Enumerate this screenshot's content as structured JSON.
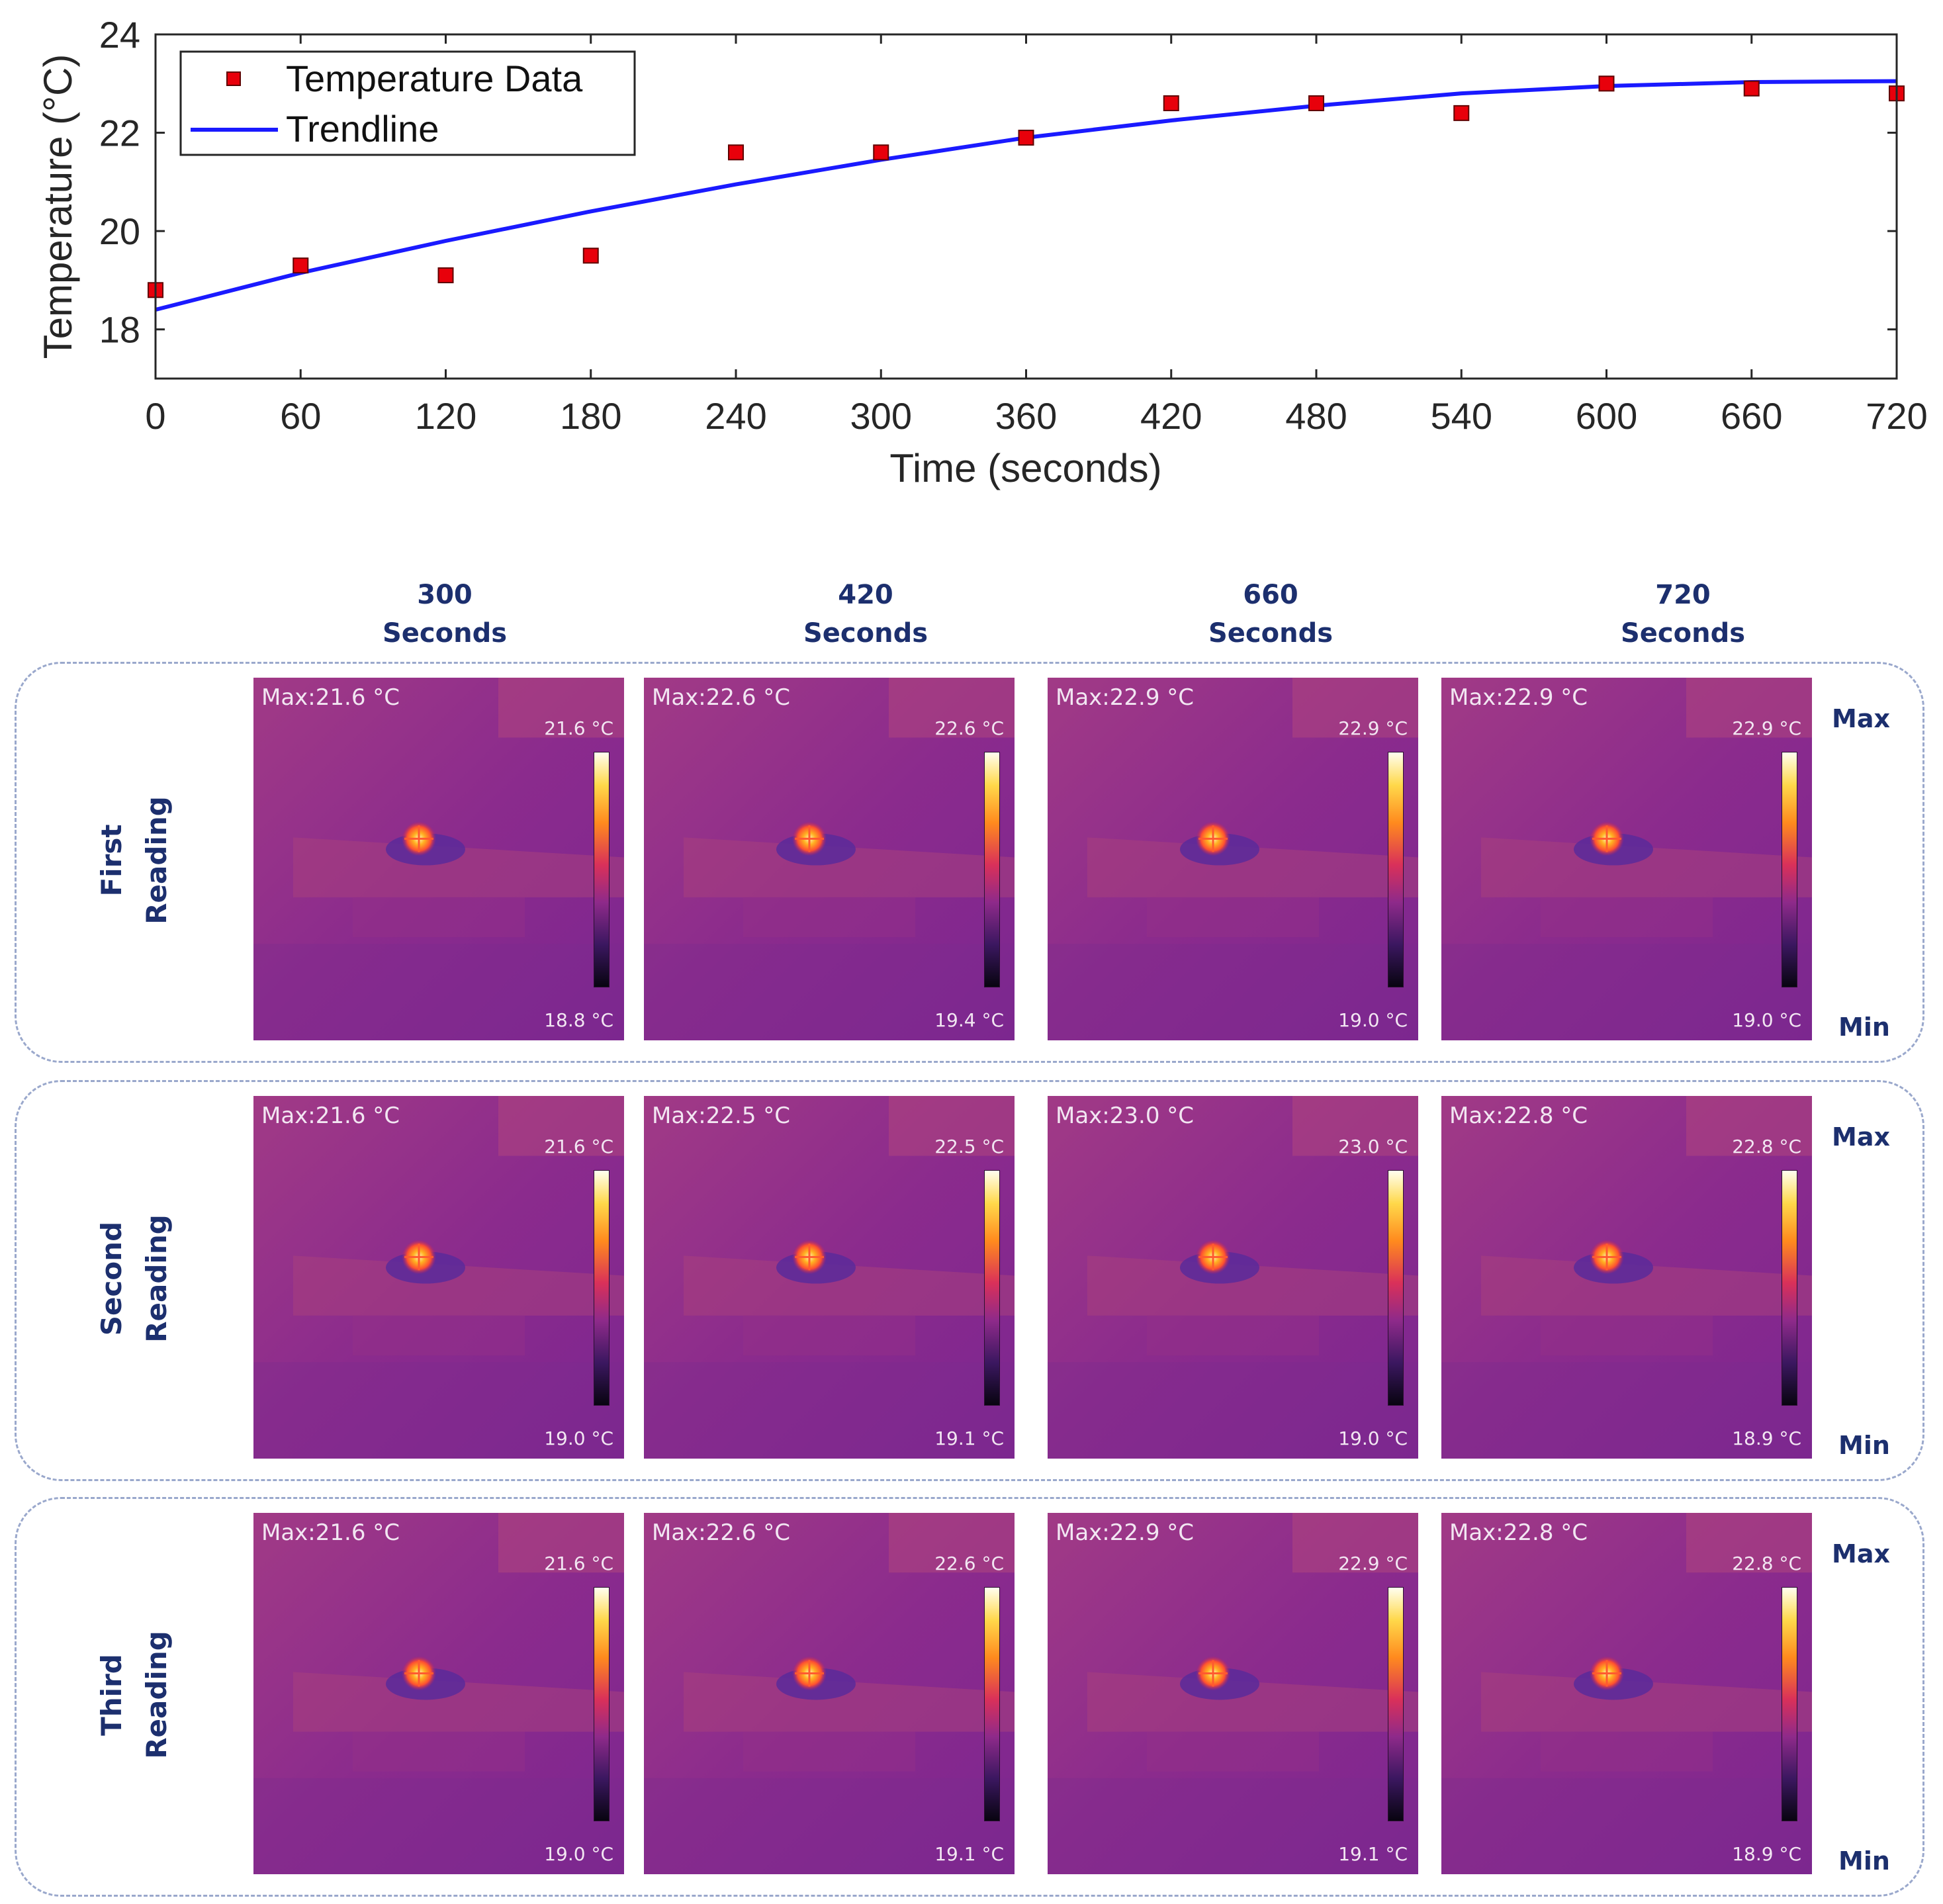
{
  "chart_data": {
    "type": "scatter",
    "title": "",
    "xlabel": "Time (seconds)",
    "ylabel": "Temperature (°C)",
    "xlim": [
      0,
      720
    ],
    "ylim": [
      17,
      24
    ],
    "xticks": [
      "0",
      "60",
      "120",
      "180",
      "240",
      "300",
      "360",
      "420",
      "480",
      "540",
      "600",
      "660",
      "720"
    ],
    "yticks": [
      "18",
      "20",
      "22",
      "24"
    ],
    "legend_position": "top-left",
    "series": [
      {
        "name": "Temperature Data",
        "kind": "markers",
        "color": "#e8000b",
        "x": [
          0,
          60,
          120,
          180,
          240,
          300,
          360,
          420,
          480,
          540,
          600,
          660,
          720
        ],
        "y": [
          18.8,
          19.3,
          19.1,
          19.5,
          21.6,
          21.6,
          21.9,
          22.6,
          22.6,
          22.4,
          23.0,
          22.9,
          22.8
        ]
      },
      {
        "name": "Trendline",
        "kind": "line",
        "color": "#1a1aff",
        "x": [
          0,
          60,
          120,
          180,
          240,
          300,
          360,
          420,
          480,
          540,
          600,
          660,
          720
        ],
        "y": [
          18.4,
          19.15,
          19.8,
          20.4,
          20.95,
          21.45,
          21.9,
          22.25,
          22.55,
          22.8,
          22.95,
          23.03,
          23.05
        ]
      }
    ]
  },
  "thermal_grid": {
    "columns": [
      {
        "line1": "300",
        "line2": "Seconds"
      },
      {
        "line1": "420",
        "line2": "Seconds"
      },
      {
        "line1": "660",
        "line2": "Seconds"
      },
      {
        "line1": "720",
        "line2": "Seconds"
      }
    ],
    "side_max_label": "Max",
    "side_min_label": "Min",
    "rows": [
      {
        "label_line1": "First",
        "label_line2": "Reading",
        "images": [
          {
            "max": "Max:21.6 °C",
            "top": "21.6 °C",
            "bottom": "18.8 °C"
          },
          {
            "max": "Max:22.6 °C",
            "top": "22.6 °C",
            "bottom": "19.4 °C"
          },
          {
            "max": "Max:22.9 °C",
            "top": "22.9 °C",
            "bottom": "19.0 °C"
          },
          {
            "max": "Max:22.9 °C",
            "top": "22.9 °C",
            "bottom": "19.0 °C"
          }
        ]
      },
      {
        "label_line1": "Second",
        "label_line2": "Reading",
        "images": [
          {
            "max": "Max:21.6 °C",
            "top": "21.6 °C",
            "bottom": "19.0 °C"
          },
          {
            "max": "Max:22.5 °C",
            "top": "22.5 °C",
            "bottom": "19.1 °C"
          },
          {
            "max": "Max:23.0 °C",
            "top": "23.0 °C",
            "bottom": "19.0 °C"
          },
          {
            "max": "Max:22.8 °C",
            "top": "22.8 °C",
            "bottom": "18.9 °C"
          }
        ]
      },
      {
        "label_line1": "Third",
        "label_line2": "Reading",
        "images": [
          {
            "max": "Max:21.6 °C",
            "top": "21.6 °C",
            "bottom": "19.0 °C"
          },
          {
            "max": "Max:22.6 °C",
            "top": "22.6 °C",
            "bottom": "19.1 °C"
          },
          {
            "max": "Max:22.9 °C",
            "top": "22.9 °C",
            "bottom": "19.1 °C"
          },
          {
            "max": "Max:22.8 °C",
            "top": "22.8 °C",
            "bottom": "18.9 °C"
          }
        ]
      }
    ]
  }
}
